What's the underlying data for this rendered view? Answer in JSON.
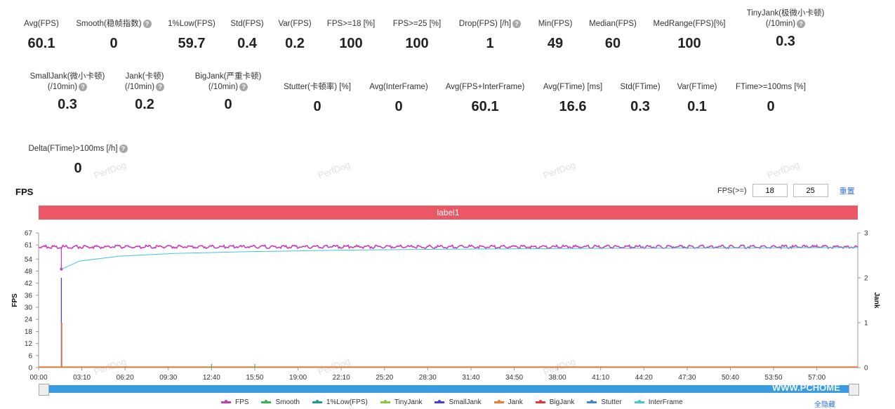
{
  "metrics_row1": [
    {
      "label": "Avg(FPS)",
      "value": "60.1",
      "help": false
    },
    {
      "label": "Smooth(稳帧指数)",
      "value": "0",
      "help": true
    },
    {
      "label": "1%Low(FPS)",
      "value": "59.7",
      "help": false
    },
    {
      "label": "Std(FPS)",
      "value": "0.4",
      "help": false
    },
    {
      "label": "Var(FPS)",
      "value": "0.2",
      "help": false
    },
    {
      "label": "FPS>=18 [%]",
      "value": "100",
      "help": false
    },
    {
      "label": "FPS>=25 [%]",
      "value": "100",
      "help": false
    },
    {
      "label": "Drop(FPS) [/h]",
      "value": "1",
      "help": true
    },
    {
      "label": "Min(FPS)",
      "value": "49",
      "help": false
    },
    {
      "label": "Median(FPS)",
      "value": "60",
      "help": false
    },
    {
      "label": "MedRange(FPS)[%]",
      "value": "100",
      "help": false
    },
    {
      "label": "TinyJank(极微小卡顿)",
      "label2": "(/10min)",
      "value": "0.3",
      "help": true
    }
  ],
  "metrics_row2": [
    {
      "label": "SmallJank(微小卡顿)",
      "label2": "(/10min)",
      "value": "0.3",
      "help": true
    },
    {
      "label": "Jank(卡顿)",
      "label2": "(/10min)",
      "value": "0.2",
      "help": true
    },
    {
      "label": "BigJank(严重卡顿)",
      "label2": "(/10min)",
      "value": "0",
      "help": true
    },
    {
      "label": "Stutter(卡顿率) [%]",
      "value": "0",
      "help": false
    },
    {
      "label": "Avg(InterFrame)",
      "value": "0",
      "help": false
    },
    {
      "label": "Avg(FPS+InterFrame)",
      "value": "60.1",
      "help": false
    },
    {
      "label": "Avg(FTime) [ms]",
      "value": "16.6",
      "help": false
    },
    {
      "label": "Std(FTime)",
      "value": "0.3",
      "help": false
    },
    {
      "label": "Var(FTime)",
      "value": "0.1",
      "help": false
    },
    {
      "label": "FTime>=100ms [%]",
      "value": "0",
      "help": false
    }
  ],
  "metrics_row3": [
    {
      "label": "Delta(FTime)>100ms [/h]",
      "value": "0",
      "help": true
    }
  ],
  "watermark": "PerfDog",
  "chart": {
    "title": "FPS",
    "threshold_label": "FPS(>=)",
    "threshold1": "18",
    "threshold2": "25",
    "reset_label": "重置",
    "band_label": "label1",
    "hide_all_label": "全隐藏",
    "site_watermark": "WWW.PCHOME"
  },
  "chart_data": {
    "type": "line",
    "ylabel": "FPS",
    "y2label": "Jank",
    "y_ticks": [
      0,
      6,
      12,
      18,
      24,
      30,
      36,
      42,
      48,
      54,
      61,
      67
    ],
    "y2_ticks": [
      0,
      1,
      2,
      3
    ],
    "x_ticks": [
      "00:00",
      "03:10",
      "06:20",
      "09:30",
      "12:40",
      "15:50",
      "19:00",
      "22:10",
      "25:20",
      "28:30",
      "31:40",
      "34:50",
      "38:00",
      "41:10",
      "44:20",
      "47:30",
      "50:40",
      "53:50",
      "57:00"
    ],
    "ylim": [
      0,
      67
    ],
    "y2lim": [
      0,
      3
    ],
    "series": [
      {
        "name": "FPS",
        "color": "#c23fb5"
      },
      {
        "name": "Smooth",
        "color": "#3bb54a"
      },
      {
        "name": "1%Low(FPS)",
        "color": "#1a9e8f"
      },
      {
        "name": "TinyJank",
        "color": "#8dc63f"
      },
      {
        "name": "SmallJank",
        "color": "#4b3fd6"
      },
      {
        "name": "Jank",
        "color": "#f07f2e"
      },
      {
        "name": "BigJank",
        "color": "#e23a3a"
      },
      {
        "name": "Stutter",
        "color": "#3a86e0"
      },
      {
        "name": "InterFrame",
        "color": "#3fc9d3"
      }
    ],
    "fps_level": 60.1,
    "fps_dip": {
      "time": "01:40",
      "value": 49
    },
    "low1_curve": [
      [
        1.7,
        49
      ],
      [
        3,
        53
      ],
      [
        6,
        55.5
      ],
      [
        10,
        56.8
      ],
      [
        15,
        57.6
      ],
      [
        22,
        58.4
      ],
      [
        30,
        58.9
      ],
      [
        40,
        59.3
      ],
      [
        50,
        59.5
      ],
      [
        60,
        59.7
      ]
    ],
    "jank_spike": {
      "time": "01:40",
      "small_jank": 2,
      "jank": 1
    },
    "smooth_blips": [
      "12:40",
      "15:50"
    ],
    "x_max_min": 60
  }
}
